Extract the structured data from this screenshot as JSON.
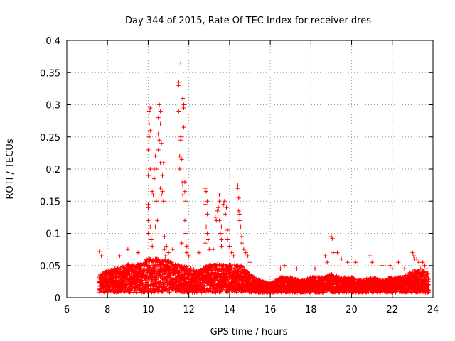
{
  "chart_data": {
    "type": "scatter",
    "title": "Day 344 of 2015, Rate Of TEC Index for receiver dres",
    "xlabel": "GPS time / hours",
    "ylabel": "ROTI / TECUs",
    "xlim": [
      6,
      24
    ],
    "ylim": [
      0,
      0.4
    ],
    "xticks": [
      "6",
      "8",
      "10",
      "12",
      "14",
      "16",
      "18",
      "20",
      "22",
      "24"
    ],
    "yticks": [
      "0",
      "0.05",
      "0.1",
      "0.15",
      "0.2",
      "0.25",
      "0.3",
      "0.35",
      "0.4"
    ],
    "grid": true,
    "marker": "+",
    "series": [
      {
        "name": "ROTI",
        "color": "#ff0000",
        "baseline_range": [
          7.6,
          23.8
        ],
        "band_profile": [
          [
            7.6,
            0.035
          ],
          [
            8.0,
            0.04
          ],
          [
            8.5,
            0.045
          ],
          [
            9.0,
            0.05
          ],
          [
            9.5,
            0.05
          ],
          [
            10.0,
            0.06
          ],
          [
            10.5,
            0.06
          ],
          [
            11.0,
            0.055
          ],
          [
            11.5,
            0.05
          ],
          [
            12.0,
            0.045
          ],
          [
            12.5,
            0.04
          ],
          [
            13.0,
            0.05
          ],
          [
            13.5,
            0.05
          ],
          [
            14.0,
            0.05
          ],
          [
            14.5,
            0.05
          ],
          [
            15.0,
            0.035
          ],
          [
            15.5,
            0.025
          ],
          [
            16.0,
            0.02
          ],
          [
            16.5,
            0.03
          ],
          [
            17.0,
            0.03
          ],
          [
            17.5,
            0.025
          ],
          [
            18.0,
            0.03
          ],
          [
            18.5,
            0.03
          ],
          [
            19.0,
            0.035
          ],
          [
            19.5,
            0.03
          ],
          [
            20.0,
            0.03
          ],
          [
            20.5,
            0.025
          ],
          [
            21.0,
            0.03
          ],
          [
            21.5,
            0.025
          ],
          [
            22.0,
            0.03
          ],
          [
            22.5,
            0.03
          ],
          [
            23.0,
            0.04
          ],
          [
            23.5,
            0.04
          ],
          [
            23.8,
            0.035
          ]
        ],
        "spike_points": [
          [
            7.6,
            0.072
          ],
          [
            7.7,
            0.065
          ],
          [
            8.6,
            0.065
          ],
          [
            9.0,
            0.075
          ],
          [
            9.5,
            0.07
          ],
          [
            10.0,
            0.1
          ],
          [
            10.0,
            0.12
          ],
          [
            10.0,
            0.14
          ],
          [
            10.0,
            0.145
          ],
          [
            10.0,
            0.19
          ],
          [
            10.0,
            0.23
          ],
          [
            10.05,
            0.25
          ],
          [
            10.05,
            0.27
          ],
          [
            10.05,
            0.29
          ],
          [
            10.1,
            0.295
          ],
          [
            10.1,
            0.26
          ],
          [
            10.1,
            0.2
          ],
          [
            10.1,
            0.11
          ],
          [
            10.15,
            0.09
          ],
          [
            10.2,
            0.08
          ],
          [
            10.2,
            0.165
          ],
          [
            10.25,
            0.16
          ],
          [
            10.3,
            0.2
          ],
          [
            10.3,
            0.185
          ],
          [
            10.35,
            0.22
          ],
          [
            10.35,
            0.11
          ],
          [
            10.4,
            0.15
          ],
          [
            10.45,
            0.12
          ],
          [
            10.4,
            0.2
          ],
          [
            10.5,
            0.28
          ],
          [
            10.5,
            0.255
          ],
          [
            10.5,
            0.23
          ],
          [
            10.55,
            0.245
          ],
          [
            10.55,
            0.3
          ],
          [
            10.6,
            0.29
          ],
          [
            10.6,
            0.27
          ],
          [
            10.6,
            0.21
          ],
          [
            10.6,
            0.17
          ],
          [
            10.65,
            0.16
          ],
          [
            10.65,
            0.24
          ],
          [
            10.7,
            0.19
          ],
          [
            10.7,
            0.165
          ],
          [
            10.75,
            0.21
          ],
          [
            10.75,
            0.15
          ],
          [
            10.8,
            0.095
          ],
          [
            10.8,
            0.075
          ],
          [
            10.85,
            0.065
          ],
          [
            10.9,
            0.08
          ],
          [
            11.0,
            0.07
          ],
          [
            11.2,
            0.075
          ],
          [
            11.5,
            0.33
          ],
          [
            11.5,
            0.29
          ],
          [
            11.55,
            0.22
          ],
          [
            11.55,
            0.2
          ],
          [
            11.6,
            0.25
          ],
          [
            11.6,
            0.245
          ],
          [
            11.65,
            0.215
          ],
          [
            11.65,
            0.085
          ],
          [
            11.7,
            0.18
          ],
          [
            11.7,
            0.175
          ],
          [
            11.7,
            0.16
          ],
          [
            11.75,
            0.3
          ],
          [
            11.75,
            0.295
          ],
          [
            11.75,
            0.265
          ],
          [
            11.8,
            0.18
          ],
          [
            11.8,
            0.165
          ],
          [
            11.85,
            0.15
          ],
          [
            11.8,
            0.12
          ],
          [
            11.85,
            0.1
          ],
          [
            11.9,
            0.08
          ],
          [
            11.9,
            0.07
          ],
          [
            12.0,
            0.065
          ],
          [
            12.5,
            0.07
          ],
          [
            12.8,
            0.17
          ],
          [
            12.85,
            0.165
          ],
          [
            12.8,
            0.145
          ],
          [
            12.9,
            0.15
          ],
          [
            12.9,
            0.13
          ],
          [
            12.85,
            0.11
          ],
          [
            12.9,
            0.1
          ],
          [
            12.95,
            0.09
          ],
          [
            12.8,
            0.085
          ],
          [
            13.0,
            0.075
          ],
          [
            13.2,
            0.075
          ],
          [
            13.3,
            0.125
          ],
          [
            13.35,
            0.12
          ],
          [
            13.4,
            0.135
          ],
          [
            13.45,
            0.14
          ],
          [
            13.5,
            0.16
          ],
          [
            13.5,
            0.15
          ],
          [
            13.5,
            0.12
          ],
          [
            13.55,
            0.1
          ],
          [
            13.6,
            0.11
          ],
          [
            13.6,
            0.09
          ],
          [
            13.6,
            0.08
          ],
          [
            13.7,
            0.145
          ],
          [
            13.75,
            0.15
          ],
          [
            13.8,
            0.13
          ],
          [
            13.85,
            0.14
          ],
          [
            13.9,
            0.105
          ],
          [
            13.9,
            0.09
          ],
          [
            14.0,
            0.08
          ],
          [
            14.1,
            0.07
          ],
          [
            14.2,
            0.065
          ],
          [
            14.4,
            0.175
          ],
          [
            14.4,
            0.17
          ],
          [
            14.45,
            0.155
          ],
          [
            14.45,
            0.135
          ],
          [
            14.5,
            0.13
          ],
          [
            14.5,
            0.12
          ],
          [
            14.55,
            0.11
          ],
          [
            14.6,
            0.095
          ],
          [
            14.6,
            0.085
          ],
          [
            14.7,
            0.075
          ],
          [
            14.8,
            0.07
          ],
          [
            14.9,
            0.065
          ],
          [
            15.0,
            0.055
          ],
          [
            16.5,
            0.045
          ],
          [
            16.7,
            0.05
          ],
          [
            17.3,
            0.045
          ],
          [
            18.2,
            0.045
          ],
          [
            18.7,
            0.065
          ],
          [
            18.8,
            0.055
          ],
          [
            19.0,
            0.095
          ],
          [
            19.05,
            0.092
          ],
          [
            19.1,
            0.07
          ],
          [
            19.3,
            0.07
          ],
          [
            19.5,
            0.06
          ],
          [
            19.8,
            0.055
          ],
          [
            20.2,
            0.055
          ],
          [
            20.9,
            0.065
          ],
          [
            21.0,
            0.055
          ],
          [
            21.5,
            0.05
          ],
          [
            21.9,
            0.05
          ],
          [
            22.0,
            0.045
          ],
          [
            22.3,
            0.055
          ],
          [
            22.6,
            0.045
          ],
          [
            23.0,
            0.07
          ],
          [
            23.05,
            0.065
          ],
          [
            23.1,
            0.06
          ],
          [
            23.2,
            0.06
          ],
          [
            23.3,
            0.055
          ],
          [
            23.4,
            0.045
          ],
          [
            23.5,
            0.055
          ],
          [
            23.6,
            0.05
          ],
          [
            23.7,
            0.045
          ],
          [
            11.6,
            0.365
          ],
          [
            11.5,
            0.335
          ],
          [
            11.7,
            0.31
          ]
        ]
      }
    ]
  }
}
